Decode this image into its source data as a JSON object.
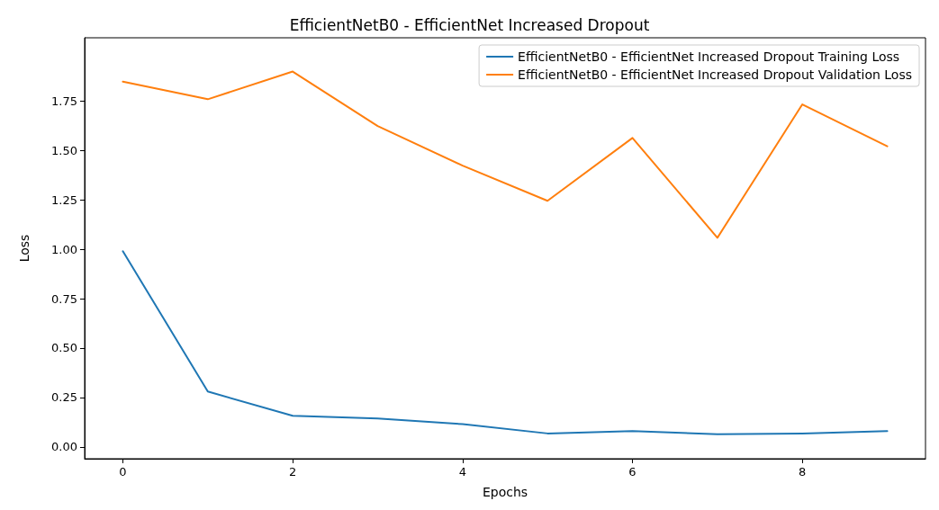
{
  "chart_data": {
    "type": "line",
    "title": "EfficientNetB0 - EfficientNet Increased Dropout",
    "xlabel": "Epochs",
    "ylabel": "Loss",
    "x": [
      0,
      1,
      2,
      3,
      4,
      5,
      6,
      7,
      8,
      9
    ],
    "series": [
      {
        "name": "EfficientNetB0 - EfficientNet Increased Dropout Training Loss",
        "color": "#1f77b4",
        "values": [
          0.99,
          0.28,
          0.157,
          0.144,
          0.115,
          0.068,
          0.08,
          0.064,
          0.068,
          0.08
        ]
      },
      {
        "name": "EfficientNetB0 - EfficientNet Increased Dropout Validation Loss",
        "color": "#ff7f0e",
        "values": [
          1.848,
          1.759,
          1.899,
          1.623,
          1.423,
          1.245,
          1.563,
          1.058,
          1.733,
          1.521
        ]
      }
    ],
    "xlim": [
      -0.45,
      9.45
    ],
    "xticks": [
      0,
      2,
      4,
      6,
      8
    ],
    "ylim": [
      -0.06,
      2.07
    ],
    "yticks": [
      {
        "value": 0,
        "label": "0.00"
      },
      {
        "value": 0.25,
        "label": "0.25"
      },
      {
        "value": 0.5,
        "label": "0.50"
      },
      {
        "value": 0.75,
        "label": "0.75"
      },
      {
        "value": 1,
        "label": "1.00"
      },
      {
        "value": 1.25,
        "label": "1.25"
      },
      {
        "value": 1.5,
        "label": "1.50"
      },
      {
        "value": 1.75,
        "label": "1.75"
      }
    ],
    "grid": false,
    "legend": "top right",
    "marker": "none",
    "line_style": "solid"
  }
}
